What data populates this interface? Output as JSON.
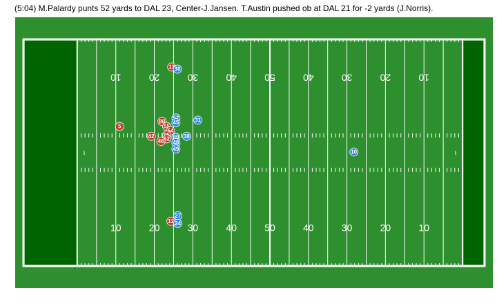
{
  "play": {
    "description": "(5:04) M.Palardy punts 52 yards to DAL 23, Center-J.Jansen. T.Austin pushed ob at DAL 21 for -2 yards (J.Norris)."
  },
  "field": {
    "yard_numbers": [
      "10",
      "20",
      "30",
      "40",
      "50",
      "40",
      "30",
      "20",
      "10"
    ],
    "colors": {
      "turf": "#2d8f2d",
      "endzone": "#006400",
      "lines": "#ffffff",
      "team_red": "#c0392b",
      "team_blue": "#2e86de"
    }
  },
  "players": {
    "red": [
      {
        "number": "13",
        "yard": 24.5,
        "lateral": 6.5
      },
      {
        "number": "5",
        "yard": 11,
        "lateral": 20.5
      },
      {
        "number": "80",
        "yard": 22,
        "lateral": 19.3
      },
      {
        "number": "55",
        "yard": 23.2,
        "lateral": 20.5
      },
      {
        "number": "54",
        "yard": 24.2,
        "lateral": 21.5
      },
      {
        "number": "95",
        "yard": 23.2,
        "lateral": 22.5
      },
      {
        "number": "62",
        "yard": 23.2,
        "lateral": 23.4
      },
      {
        "number": "42",
        "yard": 19.2,
        "lateral": 22.8
      },
      {
        "number": "46",
        "yard": 21.7,
        "lateral": 24.0
      },
      {
        "number": "12",
        "yard": 24.3,
        "lateral": 42.8
      }
    ],
    "blue": [
      {
        "number": "30",
        "yard": 26,
        "lateral": 7.0
      },
      {
        "number": "57",
        "yard": 25.6,
        "lateral": 18.5
      },
      {
        "number": "31",
        "yard": 31.3,
        "lateral": 19.0
      },
      {
        "number": "45",
        "yard": 25.6,
        "lateral": 19.6
      },
      {
        "number": "89",
        "yard": 25.6,
        "lateral": 23.1
      },
      {
        "number": "38",
        "yard": 28.4,
        "lateral": 22.8
      },
      {
        "number": "48",
        "yard": 25.6,
        "lateral": 24.3
      },
      {
        "number": "49",
        "yard": 25.6,
        "lateral": 25.8
      },
      {
        "number": "10",
        "yard": 71.8,
        "lateral": 26.5
      },
      {
        "number": "27",
        "yard": 26.1,
        "lateral": 41.5
      },
      {
        "number": "24",
        "yard": 26.1,
        "lateral": 43.3
      }
    ]
  }
}
